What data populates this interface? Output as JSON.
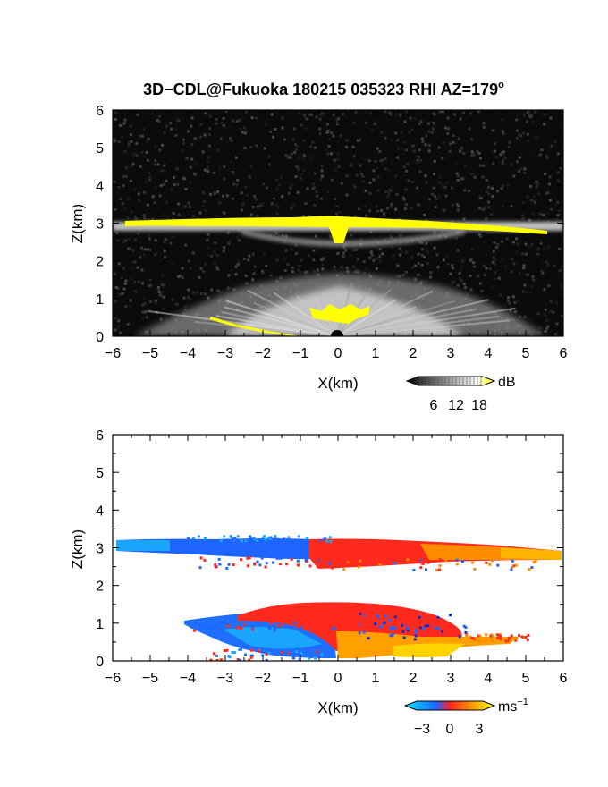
{
  "figure": {
    "title_main": "3D−CDL@Fukuoka 180215 035323 RHI AZ=179",
    "title_degree": "o"
  },
  "chart_data": [
    {
      "type": "heatmap",
      "variable": "backscatter",
      "xlabel": "X(km)",
      "ylabel": "Z(km)",
      "xlim": [
        -6,
        6
      ],
      "ylim": [
        0,
        6
      ],
      "x_ticks": [
        "−6",
        "−5",
        "−4",
        "−3",
        "−2",
        "−1",
        "0",
        "1",
        "2",
        "3",
        "4",
        "5",
        "6"
      ],
      "y_ticks": [
        "0",
        "1",
        "2",
        "3",
        "4",
        "5",
        "6"
      ],
      "colorbar": {
        "unit": "dB",
        "ticks": [
          "6",
          "12",
          "18"
        ],
        "colors": [
          "#000000",
          "#ffffff",
          "#ffff00"
        ]
      },
      "features": [
        {
          "name": "cloud layer",
          "z_km": [
            2.7,
            3.1
          ],
          "x_km": [
            -6,
            6
          ],
          "value": "saturated (yellow)"
        },
        {
          "name": "boundary layer",
          "z_km": [
            0.0,
            1.5
          ],
          "x_km": [
            -5,
            5
          ],
          "value": "moderate (grey/white)"
        },
        {
          "name": "near-surface echo",
          "z_km": [
            0.3,
            0.6
          ],
          "x_km": [
            -1.0,
            1.0
          ],
          "value": "saturated (yellow)"
        }
      ]
    },
    {
      "type": "heatmap",
      "variable": "doppler velocity",
      "xlabel": "X(km)",
      "ylabel": "Z(km)",
      "xlim": [
        -6,
        6
      ],
      "ylim": [
        0,
        6
      ],
      "x_ticks": [
        "−6",
        "−5",
        "−4",
        "−3",
        "−2",
        "−1",
        "0",
        "1",
        "2",
        "3",
        "4",
        "5",
        "6"
      ],
      "y_ticks": [
        "0",
        "1",
        "2",
        "3",
        "4",
        "5",
        "6"
      ],
      "colorbar": {
        "unit": "ms",
        "unit_exp": "−1",
        "ticks": [
          "−3",
          "0",
          "3"
        ],
        "colors": [
          "#00e5ff",
          "#1e64ff",
          "#ff2020",
          "#ffff00"
        ]
      },
      "features": [
        {
          "name": "cloud layer west",
          "z_km": [
            2.6,
            3.2
          ],
          "x_km": [
            -6,
            0
          ],
          "value_ms": -2.5
        },
        {
          "name": "cloud layer east",
          "z_km": [
            2.5,
            3.2
          ],
          "x_km": [
            0,
            6
          ],
          "value_ms": 2.0
        },
        {
          "name": "boundary layer west",
          "z_km": [
            0.0,
            1.2
          ],
          "x_km": [
            -4.0,
            0
          ],
          "value_ms": -2.0
        },
        {
          "name": "boundary layer east",
          "z_km": [
            0.0,
            1.5
          ],
          "x_km": [
            0,
            5.0
          ],
          "value_ms": 1.5
        }
      ]
    }
  ]
}
